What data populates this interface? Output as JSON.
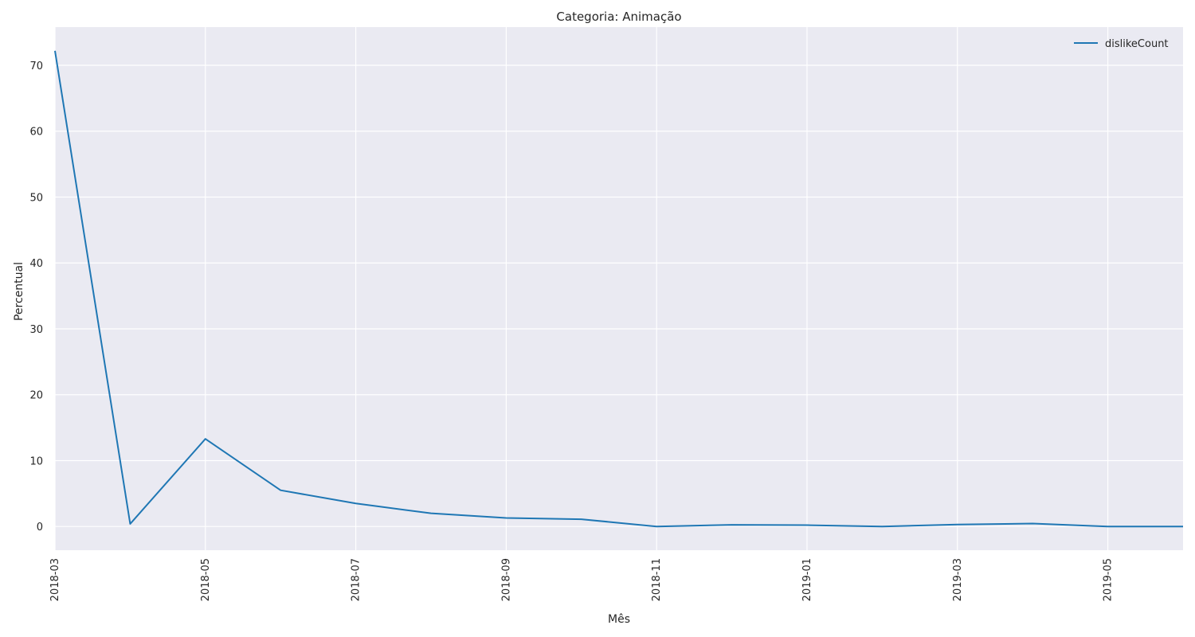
{
  "chart_data": {
    "type": "line",
    "title": "Categoria: Animação",
    "xlabel": "Mês",
    "ylabel": "Percentual",
    "x": [
      "2018-03",
      "2018-04",
      "2018-05",
      "2018-06",
      "2018-07",
      "2018-08",
      "2018-09",
      "2018-10",
      "2018-11",
      "2018-12",
      "2019-01",
      "2019-02",
      "2019-03",
      "2019-04",
      "2019-05",
      "2019-06"
    ],
    "series": [
      {
        "name": "dislikeCount",
        "color": "#1f77b4",
        "values": [
          72.2,
          0.4,
          13.3,
          5.5,
          3.5,
          2.0,
          1.3,
          1.1,
          0.0,
          0.25,
          0.2,
          0.0,
          0.3,
          0.45,
          0.0,
          0.0
        ]
      }
    ],
    "x_ticks": [
      "2018-03",
      "2018-05",
      "2018-07",
      "2018-09",
      "2018-11",
      "2019-01",
      "2019-03",
      "2019-05"
    ],
    "y_ticks": [
      0,
      10,
      20,
      30,
      40,
      50,
      60,
      70
    ],
    "xlim": [
      "2018-03",
      "2019-06"
    ],
    "ylim": [
      -3.6,
      75.8
    ],
    "grid": true,
    "legend_position": "top-right",
    "background": "#eaeaf2",
    "grid_color": "#ffffff"
  }
}
